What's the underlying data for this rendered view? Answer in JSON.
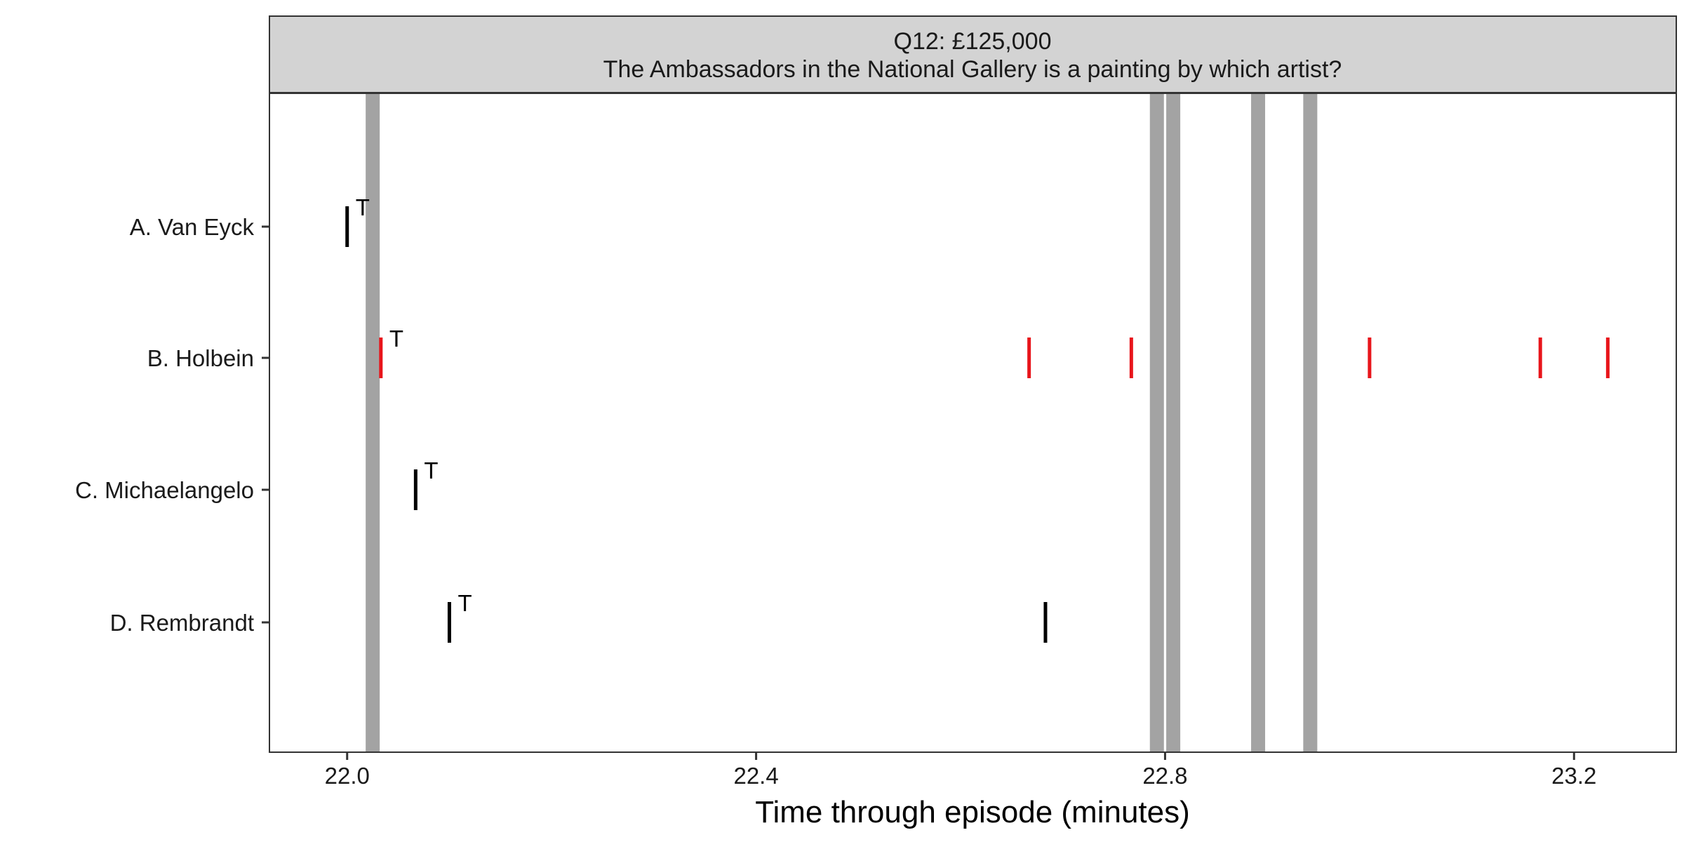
{
  "chart_data": {
    "type": "scatter",
    "title": "Q12: £125,000",
    "subtitle": "The Ambassadors in the National Gallery is a painting by which artist?",
    "xlabel": "Time through episode (minutes)",
    "ylabel": "",
    "xlim": [
      21.924,
      23.3
    ],
    "x_ticks": [
      22.0,
      22.4,
      22.8,
      23.2
    ],
    "x_tick_labels": [
      "22.0",
      "22.4",
      "22.8",
      "23.2"
    ],
    "categories": [
      "A. Van Eyck",
      "B. Holbein",
      "C. Michaelangelo",
      "D. Rembrandt"
    ],
    "grid": false,
    "legend": "none",
    "vertical_bands": [
      22.025,
      22.792,
      22.808,
      22.891,
      22.942
    ],
    "series": [
      {
        "category": "A. Van Eyck",
        "color": "#000000",
        "events": [
          {
            "x": 22.0,
            "label": "T"
          }
        ]
      },
      {
        "category": "B. Holbein",
        "color": "#e8151b",
        "events": [
          {
            "x": 22.033,
            "label": "T"
          },
          {
            "x": 22.667,
            "label": ""
          },
          {
            "x": 22.767,
            "label": ""
          },
          {
            "x": 23.0,
            "label": ""
          },
          {
            "x": 23.167,
            "label": ""
          },
          {
            "x": 23.233,
            "label": ""
          }
        ]
      },
      {
        "category": "C. Michaelangelo",
        "color": "#000000",
        "events": [
          {
            "x": 22.067,
            "label": "T"
          }
        ]
      },
      {
        "category": "D. Rembrandt",
        "color": "#000000",
        "events": [
          {
            "x": 22.1,
            "label": "T"
          },
          {
            "x": 22.683,
            "label": ""
          }
        ]
      }
    ],
    "colors": {
      "strip_fill": "#d3d3d3",
      "band": "#a3a3a3",
      "correct": "#e8151b",
      "default": "#000000"
    }
  }
}
